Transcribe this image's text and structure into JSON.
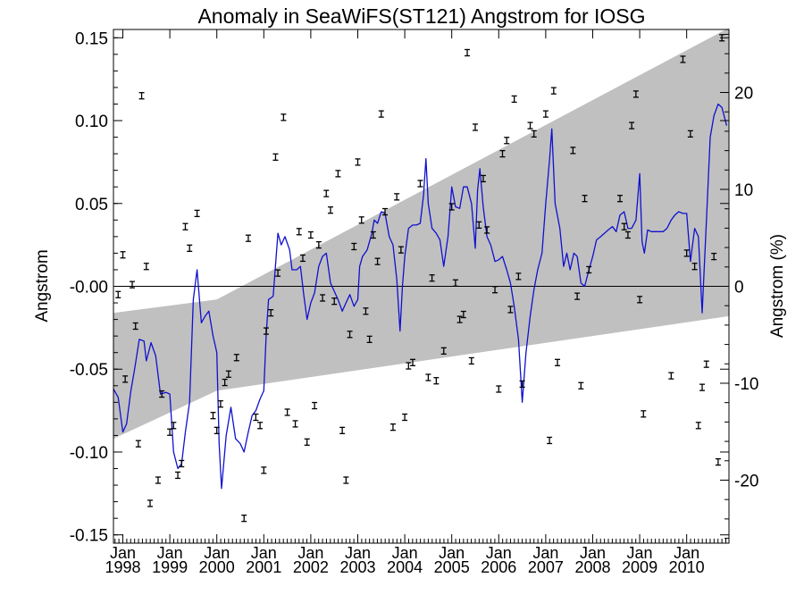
{
  "chart_data": {
    "type": "line",
    "title": "Anomaly in SeaWiFS(ST121) Angstrom for IOSG",
    "ylabel": "Angstrom",
    "y2label": "Angstrom (%)",
    "xlim": [
      1997.8,
      2010.9
    ],
    "ylim": [
      -0.155,
      0.155
    ],
    "y2lim": [
      -26.5,
      26.5
    ],
    "yticks": [
      "-0.15",
      "-0.10",
      "-0.05",
      "-0.00",
      "0.05",
      "0.10",
      "0.15"
    ],
    "yticks_values": [
      -0.15,
      -0.1,
      -0.05,
      0,
      0.05,
      0.1,
      0.15
    ],
    "y2ticks": [
      "-20",
      "-10",
      "0",
      "10",
      "20"
    ],
    "y2ticks_values": [
      -20,
      -10,
      0,
      10,
      20
    ],
    "xticks_month": [
      "Jan",
      "Jan",
      "Jan",
      "Jan",
      "Jan",
      "Jan",
      "Jan",
      "Jan",
      "Jan",
      "Jan",
      "Jan",
      "Jan",
      "Jan"
    ],
    "xticks_year": [
      "1998",
      "1999",
      "2000",
      "2001",
      "2002",
      "2003",
      "2004",
      "2005",
      "2006",
      "2007",
      "2008",
      "2009",
      "2010"
    ],
    "xticks_values": [
      1998,
      1999,
      2000,
      2001,
      2002,
      2003,
      2004,
      2005,
      2006,
      2007,
      2008,
      2009,
      2010
    ],
    "zero_line": 0,
    "colors": {
      "anomaly_line": "#1010d0",
      "trend_band": "#c0c0c0",
      "points": "#000000",
      "axis": "#000000"
    },
    "trend_band": {
      "upper": [
        [
          1997.8,
          -0.016
        ],
        [
          2000.0,
          -0.008
        ],
        [
          2010.9,
          0.156
        ]
      ],
      "lower": [
        [
          1997.8,
          -0.092
        ],
        [
          2000.0,
          -0.063
        ],
        [
          2010.9,
          -0.018
        ]
      ]
    },
    "series": [
      {
        "values": [
          [
            1997.8,
            -0.062
          ],
          [
            1997.9,
            -0.067
          ],
          [
            1998.0,
            -0.088
          ],
          [
            1998.08,
            -0.083
          ],
          [
            1998.17,
            -0.063
          ],
          [
            1998.25,
            -0.05
          ],
          [
            1998.35,
            -0.032
          ],
          [
            1998.45,
            -0.033
          ],
          [
            1998.5,
            -0.045
          ],
          [
            1998.6,
            -0.034
          ],
          [
            1998.7,
            -0.042
          ],
          [
            1998.8,
            -0.065
          ],
          [
            1998.92,
            -0.064
          ],
          [
            1999.0,
            -0.065
          ],
          [
            1999.08,
            -0.1
          ],
          [
            1999.17,
            -0.11
          ],
          [
            1999.25,
            -0.107
          ],
          [
            1999.33,
            -0.088
          ],
          [
            1999.42,
            -0.07
          ],
          [
            1999.5,
            -0.008
          ],
          [
            1999.58,
            0.01
          ],
          [
            1999.67,
            -0.022
          ],
          [
            1999.75,
            -0.018
          ],
          [
            1999.83,
            -0.015
          ],
          [
            1999.92,
            -0.03
          ],
          [
            2000.0,
            -0.04
          ],
          [
            2000.05,
            -0.095
          ],
          [
            2000.1,
            -0.122
          ],
          [
            2000.2,
            -0.09
          ],
          [
            2000.3,
            -0.073
          ],
          [
            2000.4,
            -0.092
          ],
          [
            2000.5,
            -0.095
          ],
          [
            2000.58,
            -0.1
          ],
          [
            2000.67,
            -0.088
          ],
          [
            2000.75,
            -0.078
          ],
          [
            2000.83,
            -0.075
          ],
          [
            2000.92,
            -0.068
          ],
          [
            2001.0,
            -0.063
          ],
          [
            2001.05,
            -0.03
          ],
          [
            2001.1,
            -0.008
          ],
          [
            2001.2,
            -0.006
          ],
          [
            2001.3,
            0.032
          ],
          [
            2001.37,
            0.025
          ],
          [
            2001.45,
            0.03
          ],
          [
            2001.55,
            0.022
          ],
          [
            2001.6,
            0.01
          ],
          [
            2001.7,
            0.01
          ],
          [
            2001.78,
            0.012
          ],
          [
            2001.85,
            -0.005
          ],
          [
            2001.92,
            -0.02
          ],
          [
            2002.0,
            -0.01
          ],
          [
            2002.08,
            -0.004
          ],
          [
            2002.17,
            0.012
          ],
          [
            2002.25,
            0.018
          ],
          [
            2002.33,
            0.02
          ],
          [
            2002.42,
            0.002
          ],
          [
            2002.5,
            -0.003
          ],
          [
            2002.58,
            -0.008
          ],
          [
            2002.67,
            -0.015
          ],
          [
            2002.75,
            -0.01
          ],
          [
            2002.83,
            -0.005
          ],
          [
            2002.92,
            -0.012
          ],
          [
            2003.0,
            -0.008
          ],
          [
            2003.04,
            0.012
          ],
          [
            2003.1,
            0.018
          ],
          [
            2003.2,
            0.022
          ],
          [
            2003.3,
            0.032
          ],
          [
            2003.35,
            0.04
          ],
          [
            2003.42,
            0.038
          ],
          [
            2003.5,
            0.045
          ],
          [
            2003.58,
            0.044
          ],
          [
            2003.67,
            0.03
          ],
          [
            2003.75,
            0.025
          ],
          [
            2003.83,
            0.004
          ],
          [
            2003.9,
            -0.027
          ],
          [
            2003.95,
            0.0
          ],
          [
            2004.0,
            0.018
          ],
          [
            2004.08,
            0.035
          ],
          [
            2004.17,
            0.037
          ],
          [
            2004.25,
            0.037
          ],
          [
            2004.33,
            0.038
          ],
          [
            2004.4,
            0.055
          ],
          [
            2004.45,
            0.077
          ],
          [
            2004.5,
            0.05
          ],
          [
            2004.58,
            0.035
          ],
          [
            2004.67,
            0.032
          ],
          [
            2004.75,
            0.028
          ],
          [
            2004.83,
            0.012
          ],
          [
            2004.92,
            0.03
          ],
          [
            2005.0,
            0.06
          ],
          [
            2005.08,
            0.048
          ],
          [
            2005.17,
            0.047
          ],
          [
            2005.25,
            0.06
          ],
          [
            2005.33,
            0.06
          ],
          [
            2005.42,
            0.05
          ],
          [
            2005.5,
            0.023
          ],
          [
            2005.55,
            0.058
          ],
          [
            2005.6,
            0.071
          ],
          [
            2005.67,
            0.048
          ],
          [
            2005.75,
            0.03
          ],
          [
            2005.83,
            0.025
          ],
          [
            2005.92,
            0.015
          ],
          [
            2006.0,
            0.016
          ],
          [
            2006.08,
            0.018
          ],
          [
            2006.17,
            0.01
          ],
          [
            2006.25,
            0.002
          ],
          [
            2006.33,
            -0.012
          ],
          [
            2006.42,
            -0.032
          ],
          [
            2006.5,
            -0.07
          ],
          [
            2006.58,
            -0.04
          ],
          [
            2006.67,
            -0.018
          ],
          [
            2006.75,
            -0.002
          ],
          [
            2006.83,
            0.01
          ],
          [
            2006.92,
            0.02
          ],
          [
            2007.0,
            0.05
          ],
          [
            2007.08,
            0.076
          ],
          [
            2007.13,
            0.095
          ],
          [
            2007.2,
            0.05
          ],
          [
            2007.3,
            0.035
          ],
          [
            2007.38,
            0.012
          ],
          [
            2007.45,
            0.02
          ],
          [
            2007.52,
            0.01
          ],
          [
            2007.6,
            0.02
          ],
          [
            2007.67,
            0.018
          ],
          [
            2007.75,
            0.002
          ],
          [
            2007.83,
            0.0
          ],
          [
            2007.92,
            0.01
          ],
          [
            2008.0,
            0.018
          ],
          [
            2008.08,
            0.028
          ],
          [
            2008.17,
            0.03
          ],
          [
            2008.25,
            0.032
          ],
          [
            2008.33,
            0.034
          ],
          [
            2008.42,
            0.036
          ],
          [
            2008.5,
            0.033
          ],
          [
            2008.58,
            0.043
          ],
          [
            2008.67,
            0.045
          ],
          [
            2008.75,
            0.035
          ],
          [
            2008.83,
            0.035
          ],
          [
            2008.92,
            0.04
          ],
          [
            2009.0,
            0.068
          ],
          [
            2009.05,
            0.027
          ],
          [
            2009.1,
            0.02
          ],
          [
            2009.17,
            0.034
          ],
          [
            2009.25,
            0.033
          ],
          [
            2009.33,
            0.033
          ],
          [
            2009.42,
            0.033
          ],
          [
            2009.5,
            0.033
          ],
          [
            2009.58,
            0.035
          ],
          [
            2009.67,
            0.04
          ],
          [
            2009.75,
            0.043
          ],
          [
            2009.83,
            0.045
          ],
          [
            2009.92,
            0.044
          ],
          [
            2010.0,
            0.044
          ],
          [
            2010.08,
            0.015
          ],
          [
            2010.17,
            0.035
          ],
          [
            2010.25,
            0.03
          ],
          [
            2010.33,
            -0.016
          ],
          [
            2010.42,
            0.04
          ],
          [
            2010.5,
            0.09
          ],
          [
            2010.58,
            0.103
          ],
          [
            2010.67,
            0.11
          ],
          [
            2010.75,
            0.108
          ],
          [
            2010.85,
            0.097
          ]
        ]
      },
      {
        "values": [
          [
            1997.9,
            -0.005
          ],
          [
            1998.0,
            0.019
          ],
          [
            1998.05,
            -0.056
          ],
          [
            1998.2,
            0.001
          ],
          [
            1998.27,
            -0.024
          ],
          [
            1998.33,
            -0.095
          ],
          [
            1998.4,
            0.115
          ],
          [
            1998.5,
            0.012
          ],
          [
            1998.58,
            -0.131
          ],
          [
            1998.75,
            -0.117
          ],
          [
            1998.83,
            -0.065
          ],
          [
            1999.0,
            -0.088
          ],
          [
            1999.08,
            -0.084
          ],
          [
            1999.17,
            -0.114
          ],
          [
            1999.25,
            -0.107
          ],
          [
            1999.33,
            0.036
          ],
          [
            1999.42,
            0.023
          ],
          [
            1999.58,
            0.044
          ],
          [
            1999.92,
            -0.078
          ],
          [
            2000.0,
            -0.087
          ],
          [
            2000.08,
            -0.071
          ],
          [
            2000.17,
            -0.058
          ],
          [
            2000.25,
            -0.053
          ],
          [
            2000.42,
            -0.043
          ],
          [
            2000.58,
            -0.14
          ],
          [
            2000.67,
            0.029
          ],
          [
            2000.83,
            -0.079
          ],
          [
            2000.92,
            -0.084
          ],
          [
            2001.0,
            -0.111
          ],
          [
            2001.05,
            -0.027
          ],
          [
            2001.15,
            -0.016
          ],
          [
            2001.25,
            0.078
          ],
          [
            2001.3,
            0.008
          ],
          [
            2001.42,
            0.102
          ],
          [
            2001.5,
            -0.076
          ],
          [
            2001.67,
            -0.083
          ],
          [
            2001.75,
            0.033
          ],
          [
            2001.83,
            0.017
          ],
          [
            2001.92,
            -0.094
          ],
          [
            2002.0,
            0.031
          ],
          [
            2002.08,
            -0.072
          ],
          [
            2002.17,
            0.025
          ],
          [
            2002.25,
            -0.007
          ],
          [
            2002.33,
            0.056
          ],
          [
            2002.42,
            0.046
          ],
          [
            2002.5,
            -0.009
          ],
          [
            2002.58,
            0.068
          ],
          [
            2002.67,
            -0.087
          ],
          [
            2002.75,
            -0.117
          ],
          [
            2002.83,
            -0.029
          ],
          [
            2002.92,
            0.024
          ],
          [
            2003.0,
            0.075
          ],
          [
            2003.08,
            0.04
          ],
          [
            2003.17,
            -0.015
          ],
          [
            2003.25,
            -0.032
          ],
          [
            2003.33,
            0.031
          ],
          [
            2003.42,
            0.015
          ],
          [
            2003.5,
            0.104
          ],
          [
            2003.58,
            0.045
          ],
          [
            2003.75,
            -0.085
          ],
          [
            2003.83,
            0.054
          ],
          [
            2003.92,
            0.022
          ],
          [
            2004.0,
            -0.079
          ],
          [
            2004.08,
            -0.048
          ],
          [
            2004.17,
            -0.046
          ],
          [
            2004.33,
            0.062
          ],
          [
            2004.5,
            -0.055
          ],
          [
            2004.58,
            0.005
          ],
          [
            2004.67,
            -0.057
          ],
          [
            2004.83,
            -0.039
          ],
          [
            2005.0,
            0.048
          ],
          [
            2005.08,
            0.002
          ],
          [
            2005.17,
            -0.02
          ],
          [
            2005.25,
            -0.017
          ],
          [
            2005.33,
            0.141
          ],
          [
            2005.42,
            -0.045
          ],
          [
            2005.5,
            0.096
          ],
          [
            2005.58,
            0.037
          ],
          [
            2005.67,
            0.065
          ],
          [
            2005.75,
            0.034
          ],
          [
            2005.92,
            -0.002
          ],
          [
            2006.0,
            -0.062
          ],
          [
            2006.08,
            0.08
          ],
          [
            2006.17,
            0.088
          ],
          [
            2006.25,
            -0.014
          ],
          [
            2006.33,
            0.113
          ],
          [
            2006.42,
            0.006
          ],
          [
            2006.5,
            -0.059
          ],
          [
            2006.67,
            0.097
          ],
          [
            2006.75,
            0.092
          ],
          [
            2007.0,
            0.104
          ],
          [
            2007.08,
            -0.093
          ],
          [
            2007.17,
            0.118
          ],
          [
            2007.25,
            -0.046
          ],
          [
            2007.58,
            0.082
          ],
          [
            2007.67,
            -0.006
          ],
          [
            2007.75,
            -0.06
          ],
          [
            2007.83,
            0.053
          ],
          [
            2007.92,
            0.01
          ],
          [
            2008.58,
            0.053
          ],
          [
            2008.67,
            0.036
          ],
          [
            2008.75,
            0.031
          ],
          [
            2008.83,
            0.097
          ],
          [
            2008.92,
            0.116
          ],
          [
            2009.0,
            -0.008
          ],
          [
            2009.08,
            -0.077
          ],
          [
            2009.67,
            -0.054
          ],
          [
            2009.92,
            0.137
          ],
          [
            2010.0,
            0.02
          ],
          [
            2010.08,
            0.092
          ],
          [
            2010.17,
            0.012
          ],
          [
            2010.25,
            -0.084
          ],
          [
            2010.33,
            -0.061
          ],
          [
            2010.42,
            -0.047
          ],
          [
            2010.58,
            0.018
          ],
          [
            2010.67,
            -0.106
          ],
          [
            2010.75,
            0.15
          ]
        ]
      }
    ]
  }
}
